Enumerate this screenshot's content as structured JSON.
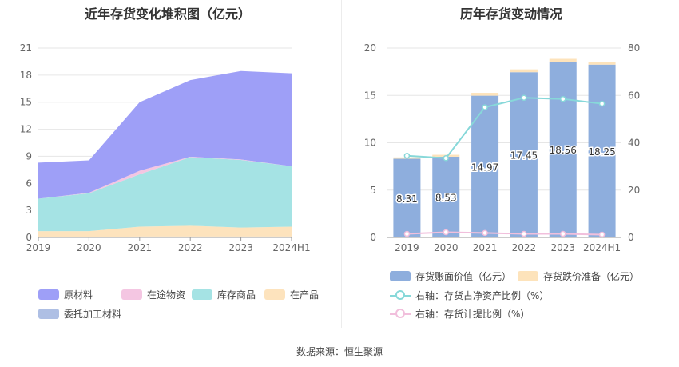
{
  "left_chart": {
    "title": "近年存货变化堆积图（亿元）"
  },
  "right_chart": {
    "title": "历年存货变动情况"
  },
  "source": "数据来源：恒生聚源",
  "colors": {
    "raw_material": "#9e9ff7",
    "in_transit": "#f4c6e2",
    "finished_goods": "#a5e3e4",
    "wip": "#fde3bd",
    "consigned": "#aebfe4",
    "bar_value": "#8eaedd",
    "bar_reserve": "#fde3bb",
    "line_ratio_net": "#87d8d9",
    "line_ratio_provision": "#f1bfdc"
  },
  "chart_data": [
    {
      "type": "area",
      "title": "近年存货变化堆积图（亿元）",
      "categories": [
        "2019",
        "2020",
        "2021",
        "2022",
        "2023",
        "2024H1"
      ],
      "ylim": [
        0,
        21
      ],
      "yticks": [
        0,
        3,
        6,
        9,
        12,
        15,
        18,
        21
      ],
      "stacked": true,
      "series": [
        {
          "name": "委托加工材料",
          "values": [
            0.05,
            0.05,
            0.1,
            0.1,
            0.1,
            0.1
          ]
        },
        {
          "name": "在产品",
          "values": [
            0.65,
            0.65,
            1.1,
            1.2,
            1.0,
            1.1
          ]
        },
        {
          "name": "库存商品",
          "values": [
            3.6,
            4.2,
            5.8,
            7.6,
            7.5,
            6.7
          ]
        },
        {
          "name": "在途物资",
          "values": [
            0.0,
            0.05,
            0.4,
            0.05,
            0.05,
            0.0
          ]
        },
        {
          "name": "原材料",
          "values": [
            4.0,
            3.6,
            7.6,
            8.5,
            9.8,
            10.3
          ]
        }
      ],
      "legend": [
        "原材料",
        "在途物资",
        "库存商品",
        "在产品",
        "委托加工材料"
      ],
      "legend_position": "bottom"
    },
    {
      "type": "bar",
      "title": "历年存货变动情况",
      "categories": [
        "2019",
        "2020",
        "2021",
        "2022",
        "2023",
        "2024H1"
      ],
      "ylim": [
        0,
        20
      ],
      "yticks": [
        0,
        5,
        10,
        15,
        20
      ],
      "y2lim": [
        0,
        80
      ],
      "y2ticks": [
        0,
        20,
        40,
        60,
        80
      ],
      "series": [
        {
          "name": "存货账面价值（亿元）",
          "values": [
            8.31,
            8.53,
            14.97,
            17.45,
            18.56,
            18.25
          ],
          "labels": [
            "8.31",
            "8.53",
            "14.97",
            "17.45",
            "18.56",
            "18.25"
          ]
        },
        {
          "name": "存货跌价准备（亿元）",
          "values": [
            0.15,
            0.2,
            0.3,
            0.3,
            0.3,
            0.3
          ]
        },
        {
          "name": "右轴：存货占净资产比例（%）",
          "axis": "right",
          "values": [
            34.5,
            33.5,
            55.0,
            59.0,
            58.5,
            56.5
          ]
        },
        {
          "name": "右轴：存货计提比例（%）",
          "axis": "right",
          "values": [
            1.5,
            2.2,
            1.9,
            1.5,
            1.5,
            1.2
          ]
        }
      ],
      "legend_position": "bottom"
    }
  ]
}
